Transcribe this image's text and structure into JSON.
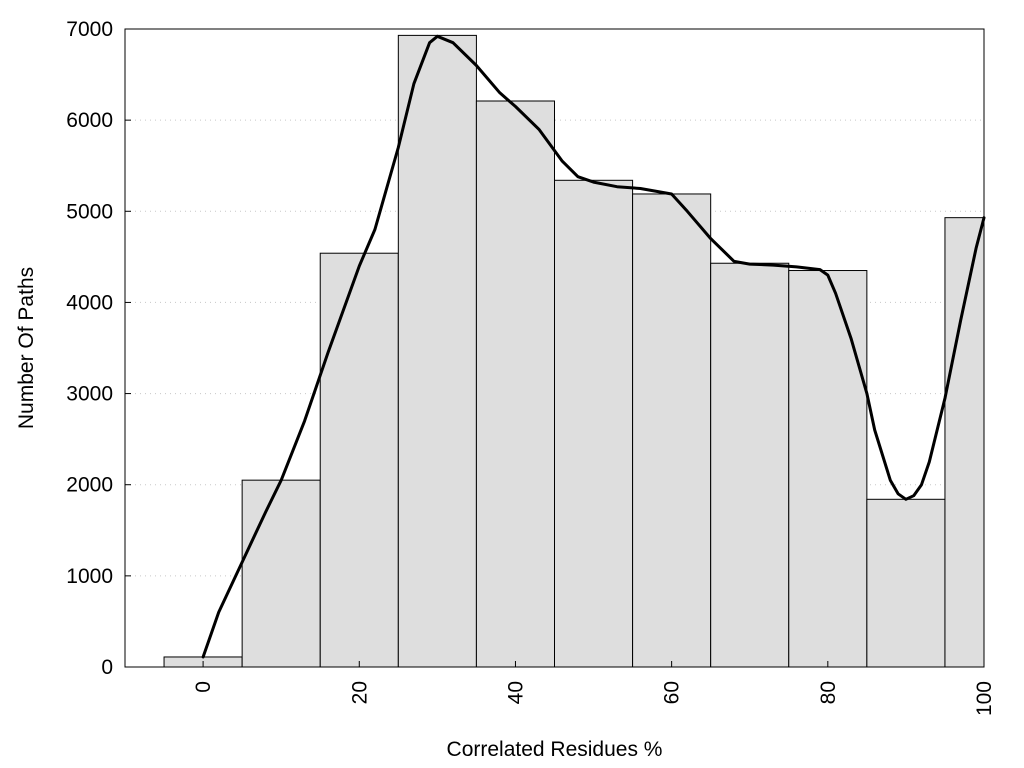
{
  "chart_data": {
    "type": "bar",
    "subtype": "histogram-with-smooth-curve",
    "title": "",
    "xlabel": "Correlated Residues %",
    "ylabel": "Number Of Paths",
    "xlim": [
      -10,
      100
    ],
    "ylim": [
      0,
      7000
    ],
    "x_ticks": [
      0,
      20,
      40,
      60,
      80,
      100
    ],
    "y_ticks": [
      0,
      1000,
      2000,
      3000,
      4000,
      5000,
      6000,
      7000
    ],
    "x_tick_labels": [
      "0",
      "20",
      "40",
      "60",
      "80",
      "100"
    ],
    "y_tick_labels": [
      "0",
      "1000",
      "2000",
      "3000",
      "4000",
      "5000",
      "6000",
      "7000"
    ],
    "grid": "horizontal-dotted",
    "bin_width": 10,
    "bins": [
      {
        "x": 0,
        "value": 110
      },
      {
        "x": 10,
        "value": 2050
      },
      {
        "x": 20,
        "value": 4540
      },
      {
        "x": 30,
        "value": 6930
      },
      {
        "x": 40,
        "value": 6210
      },
      {
        "x": 50,
        "value": 5340
      },
      {
        "x": 60,
        "value": 5190
      },
      {
        "x": 70,
        "value": 4430
      },
      {
        "x": 80,
        "value": 4350
      },
      {
        "x": 90,
        "value": 1840
      },
      {
        "x": 100,
        "value": 4930
      }
    ],
    "curve": [
      [
        0,
        110
      ],
      [
        2,
        600
      ],
      [
        5,
        1150
      ],
      [
        8,
        1700
      ],
      [
        10,
        2050
      ],
      [
        13,
        2700
      ],
      [
        16,
        3450
      ],
      [
        20,
        4400
      ],
      [
        22,
        4800
      ],
      [
        25,
        5700
      ],
      [
        27,
        6400
      ],
      [
        29,
        6850
      ],
      [
        30,
        6920
      ],
      [
        32,
        6850
      ],
      [
        35,
        6600
      ],
      [
        38,
        6300
      ],
      [
        40,
        6150
      ],
      [
        43,
        5900
      ],
      [
        46,
        5550
      ],
      [
        48,
        5380
      ],
      [
        50,
        5320
      ],
      [
        53,
        5270
      ],
      [
        56,
        5250
      ],
      [
        60,
        5190
      ],
      [
        62,
        5000
      ],
      [
        65,
        4700
      ],
      [
        68,
        4450
      ],
      [
        70,
        4420
      ],
      [
        73,
        4410
      ],
      [
        76,
        4390
      ],
      [
        79,
        4360
      ],
      [
        80,
        4300
      ],
      [
        81,
        4100
      ],
      [
        83,
        3600
      ],
      [
        85,
        3000
      ],
      [
        86,
        2600
      ],
      [
        88,
        2050
      ],
      [
        89,
        1900
      ],
      [
        90,
        1840
      ],
      [
        91,
        1880
      ],
      [
        92,
        2000
      ],
      [
        93,
        2250
      ],
      [
        95,
        2950
      ],
      [
        97,
        3800
      ],
      [
        99,
        4600
      ],
      [
        100,
        4930
      ]
    ],
    "colors": {
      "bar_fill": "#dedede",
      "bar_stroke": "#000000",
      "curve": "#000000",
      "grid": "#c8c8c8"
    }
  }
}
